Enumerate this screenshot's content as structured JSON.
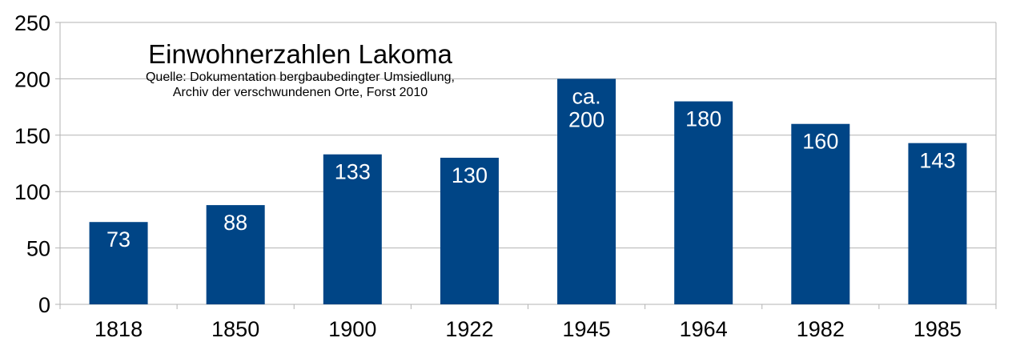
{
  "chart_data": {
    "type": "bar",
    "title": "Einwohnerzahlen Lakoma",
    "subtitle_lines": [
      "Quelle: Dokumentation bergbaubedingter Umsiedlung,",
      "Archiv der verschwundenen Orte, Forst 2010"
    ],
    "categories": [
      "1818",
      "1850",
      "1900",
      "1922",
      "1945",
      "1964",
      "1982",
      "1985"
    ],
    "values": [
      73,
      88,
      133,
      130,
      200,
      180,
      160,
      143
    ],
    "data_labels": [
      [
        "73"
      ],
      [
        "88"
      ],
      [
        "133"
      ],
      [
        "130"
      ],
      [
        "ca.",
        "200"
      ],
      [
        "180"
      ],
      [
        "160"
      ],
      [
        "143"
      ]
    ],
    "ylim": [
      0,
      250
    ],
    "yticks": [
      "0",
      "50",
      "100",
      "150",
      "200",
      "250"
    ],
    "grid": true,
    "bar_color": "#004586",
    "xlabel": "",
    "ylabel": ""
  }
}
